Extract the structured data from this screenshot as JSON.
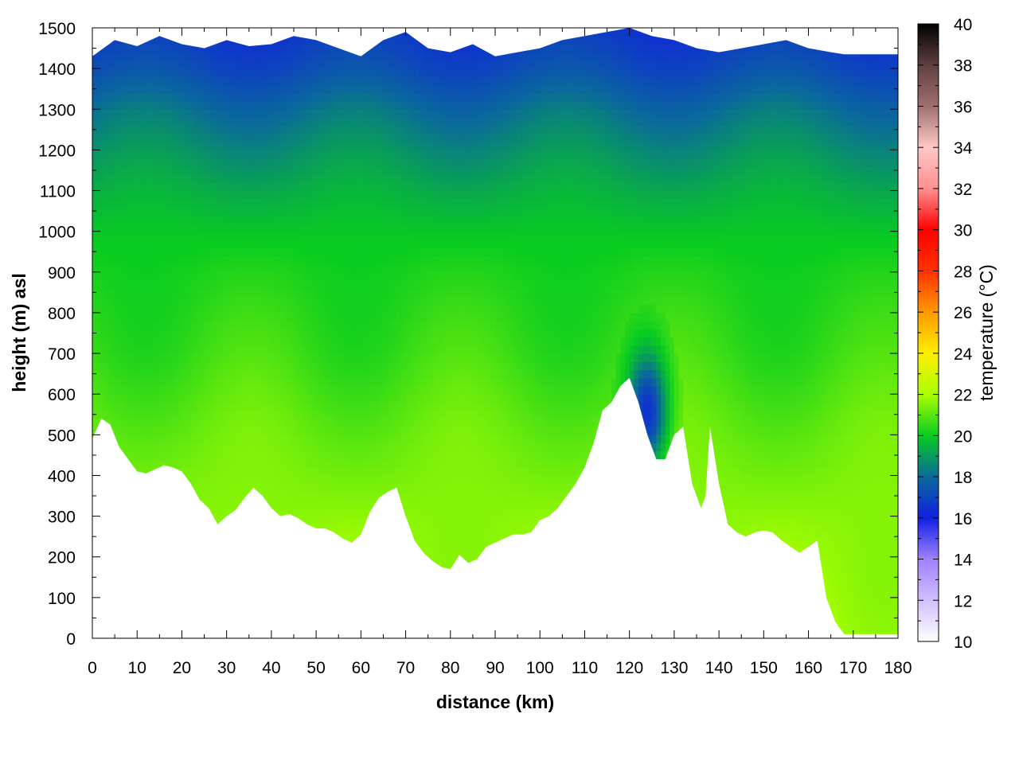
{
  "chart_data": {
    "type": "heatmap",
    "title": "",
    "xlabel": "distance (km)",
    "ylabel": "height (m) asl",
    "colorbar_label": "temperature (°C)",
    "xlim": [
      0,
      180
    ],
    "ylim": [
      0,
      1500
    ],
    "clim": [
      10,
      40
    ],
    "x_ticks": [
      0,
      10,
      20,
      30,
      40,
      50,
      60,
      70,
      80,
      90,
      100,
      110,
      120,
      130,
      140,
      150,
      160,
      170,
      180
    ],
    "y_ticks": [
      0,
      100,
      200,
      300,
      400,
      500,
      600,
      700,
      800,
      900,
      1000,
      1100,
      1200,
      1300,
      1400,
      1500
    ],
    "colorbar_ticks": [
      10,
      12,
      14,
      16,
      18,
      20,
      22,
      24,
      26,
      28,
      30,
      32,
      34,
      36,
      38,
      40
    ],
    "grid": true,
    "colormap": [
      {
        "t": 10,
        "color": "#ffffff"
      },
      {
        "t": 14,
        "color": "#a080ff"
      },
      {
        "t": 16,
        "color": "#1020e0"
      },
      {
        "t": 18,
        "color": "#0a6a9a"
      },
      {
        "t": 20,
        "color": "#08cc20"
      },
      {
        "t": 22,
        "color": "#aaff00"
      },
      {
        "t": 24,
        "color": "#ffee00"
      },
      {
        "t": 26,
        "color": "#ff9900"
      },
      {
        "t": 28,
        "color": "#ff3000"
      },
      {
        "t": 30,
        "color": "#ff0000"
      },
      {
        "t": 32,
        "color": "#ff9090"
      },
      {
        "t": 34,
        "color": "#ffc8c8"
      },
      {
        "t": 36,
        "color": "#a07070"
      },
      {
        "t": 38,
        "color": "#604040"
      },
      {
        "t": 40,
        "color": "#000000"
      }
    ],
    "terrain": {
      "distance_km": [
        0,
        2,
        4,
        6,
        8,
        10,
        12,
        14,
        16,
        18,
        20,
        22,
        24,
        26,
        28,
        30,
        32,
        34,
        36,
        38,
        40,
        42,
        44,
        46,
        48,
        50,
        52,
        54,
        56,
        58,
        60,
        62,
        64,
        66,
        68,
        70,
        72,
        74,
        76,
        78,
        80,
        82,
        84,
        86,
        88,
        90,
        92,
        94,
        96,
        98,
        100,
        102,
        104,
        106,
        108,
        110,
        112,
        114,
        116,
        118,
        120,
        122,
        124,
        126,
        128,
        130,
        132,
        134,
        136,
        137,
        138,
        140,
        142,
        144,
        146,
        148,
        150,
        152,
        154,
        156,
        158,
        160,
        162,
        164,
        166,
        168,
        170,
        172,
        174,
        176,
        178,
        180
      ],
      "height_m": [
        490,
        540,
        525,
        470,
        440,
        410,
        405,
        415,
        425,
        420,
        410,
        380,
        340,
        320,
        280,
        300,
        315,
        345,
        370,
        350,
        320,
        300,
        305,
        295,
        280,
        270,
        270,
        260,
        245,
        235,
        255,
        310,
        345,
        360,
        370,
        300,
        240,
        210,
        190,
        175,
        170,
        205,
        185,
        195,
        225,
        235,
        245,
        255,
        255,
        260,
        290,
        300,
        320,
        350,
        380,
        420,
        480,
        560,
        580,
        620,
        640,
        580,
        500,
        440,
        440,
        500,
        520,
        380,
        320,
        350,
        520,
        380,
        280,
        260,
        250,
        260,
        265,
        260,
        240,
        225,
        210,
        225,
        240,
        100,
        40,
        10,
        10,
        10,
        10,
        10,
        10,
        10
      ]
    },
    "top_boundary": {
      "distance_km": [
        0,
        5,
        10,
        15,
        20,
        25,
        30,
        35,
        40,
        45,
        50,
        55,
        60,
        65,
        70,
        75,
        80,
        85,
        90,
        95,
        100,
        105,
        110,
        115,
        120,
        125,
        130,
        135,
        140,
        145,
        150,
        155,
        160,
        165,
        168,
        180
      ],
      "height_m": [
        1430,
        1470,
        1455,
        1480,
        1460,
        1450,
        1470,
        1455,
        1460,
        1480,
        1470,
        1450,
        1430,
        1470,
        1490,
        1450,
        1440,
        1460,
        1430,
        1440,
        1450,
        1470,
        1480,
        1490,
        1500,
        1480,
        1470,
        1450,
        1440,
        1450,
        1460,
        1470,
        1450,
        1440,
        1435,
        1435
      ]
    },
    "temperature_profile": {
      "height_m": [
        0,
        300,
        500,
        600,
        700,
        800,
        900,
        1000,
        1100,
        1200,
        1300,
        1400,
        1500
      ],
      "temperature_c": [
        22.0,
        21.6,
        21.2,
        20.9,
        20.6,
        20.4,
        20.2,
        19.9,
        19.4,
        18.8,
        18.1,
        17.2,
        16.6
      ]
    },
    "cold_pool": {
      "center_distance_km": 124,
      "center_height_m": 560,
      "radius_km": 5,
      "radius_m": 160,
      "temperature_c": 16.5
    }
  }
}
